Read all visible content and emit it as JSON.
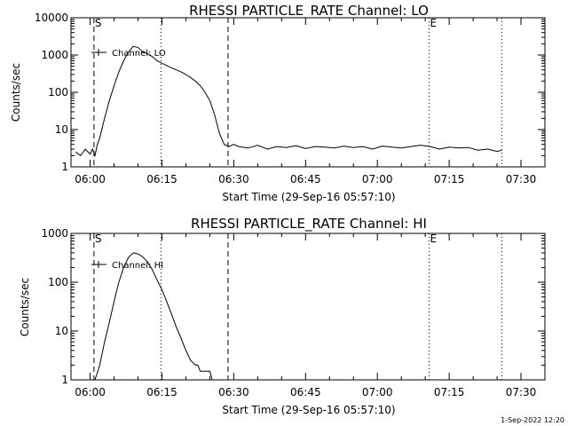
{
  "footer": {
    "timestamp": "1-Sep-2022 12:20"
  },
  "chart_data": [
    {
      "type": "line",
      "title": "RHESSI PARTICLE_RATE Channel: LO",
      "xlabel": "Start Time (29-Sep-16 05:57:10)",
      "ylabel": "Counts/sec",
      "yscale": "log",
      "ylim": [
        1,
        10000
      ],
      "xlim_min": [
        -1,
        98
      ],
      "x_tick_min": [
        3,
        18,
        33,
        48,
        63,
        78,
        93
      ],
      "x_tick_labels": [
        "06:00",
        "06:15",
        "06:30",
        "06:45",
        "07:00",
        "07:15",
        "07:30"
      ],
      "y_tick_values": [
        1,
        10,
        100,
        1000,
        10000
      ],
      "y_tick_labels": [
        "1",
        "10",
        "100",
        "1000",
        "10000"
      ],
      "legend": [
        "Channel: LO"
      ],
      "legend_position": "upper-left",
      "markers": [
        {
          "x_min": 3.8,
          "style": "dashed",
          "label": "S"
        },
        {
          "x_min": 17.8,
          "style": "dotted",
          "label": ""
        },
        {
          "x_min": 31.8,
          "style": "dashed",
          "label": ""
        },
        {
          "x_min": 73.8,
          "style": "dotted",
          "label": "E"
        },
        {
          "x_min": 89,
          "style": "dotted",
          "label": ""
        }
      ],
      "series": [
        {
          "name": "Channel: LO",
          "x_min": [
            0,
            1,
            2,
            3,
            3.5,
            4,
            4.5,
            5,
            6,
            7,
            8,
            9,
            10,
            11,
            12,
            13,
            14,
            15,
            16,
            17,
            18,
            19,
            20,
            21,
            22,
            23,
            24,
            25,
            26,
            27,
            28,
            29,
            30,
            31,
            32,
            33,
            34,
            36,
            38,
            40,
            42,
            44,
            46,
            48,
            50,
            52,
            54,
            56,
            58,
            60,
            62,
            64,
            66,
            68,
            70,
            72,
            74,
            76,
            78,
            80,
            82,
            84,
            86,
            88,
            89
          ],
          "values": [
            2.5,
            2.0,
            3.0,
            2.2,
            3.0,
            2.0,
            4.0,
            6.0,
            20,
            60,
            150,
            350,
            700,
            1200,
            1700,
            1600,
            1200,
            1100,
            900,
            700,
            600,
            520,
            450,
            400,
            350,
            300,
            250,
            200,
            150,
            100,
            60,
            25,
            8,
            4,
            3.5,
            4,
            3.5,
            3.2,
            3.8,
            3.0,
            3.5,
            3.3,
            3.7,
            3.1,
            3.5,
            3.4,
            3.2,
            3.6,
            3.3,
            3.5,
            3.0,
            3.6,
            3.4,
            3.2,
            3.5,
            3.8,
            3.5,
            3.0,
            3.4,
            3.2,
            3.3,
            2.8,
            3.0,
            2.6,
            2.8
          ]
        }
      ]
    },
    {
      "type": "line",
      "title": "RHESSI PARTICLE_RATE Channel: HI",
      "xlabel": "Start Time (29-Sep-16 05:57:10)",
      "ylabel": "Counts/sec",
      "yscale": "log",
      "ylim": [
        1,
        1000
      ],
      "xlim_min": [
        -1,
        98
      ],
      "x_tick_min": [
        3,
        18,
        33,
        48,
        63,
        78,
        93
      ],
      "x_tick_labels": [
        "06:00",
        "06:15",
        "06:30",
        "06:45",
        "07:00",
        "07:15",
        "07:30"
      ],
      "y_tick_values": [
        1,
        10,
        100,
        1000
      ],
      "y_tick_labels": [
        "1",
        "10",
        "100",
        "1000"
      ],
      "legend": [
        "Channel: HI"
      ],
      "legend_position": "upper-left",
      "markers": [
        {
          "x_min": 3.8,
          "style": "dashed",
          "label": "S"
        },
        {
          "x_min": 17.8,
          "style": "dotted",
          "label": ""
        },
        {
          "x_min": 31.8,
          "style": "dashed",
          "label": ""
        },
        {
          "x_min": 73.8,
          "style": "dotted",
          "label": "E"
        },
        {
          "x_min": 89,
          "style": "dotted",
          "label": ""
        }
      ],
      "series": [
        {
          "name": "Channel: HI",
          "x_min": [
            4,
            5,
            6,
            7,
            8,
            9,
            10,
            11,
            12,
            13,
            14,
            15,
            16,
            17,
            18,
            19,
            20,
            21,
            22,
            23,
            24,
            25,
            25.5,
            26,
            27,
            28,
            28.5
          ],
          "values": [
            1,
            2,
            6,
            15,
            40,
            100,
            200,
            320,
            400,
            380,
            330,
            260,
            180,
            110,
            70,
            40,
            22,
            12,
            7,
            4,
            2.5,
            2.0,
            2.0,
            1.5,
            1.5,
            1.5,
            1.0
          ]
        }
      ]
    }
  ]
}
